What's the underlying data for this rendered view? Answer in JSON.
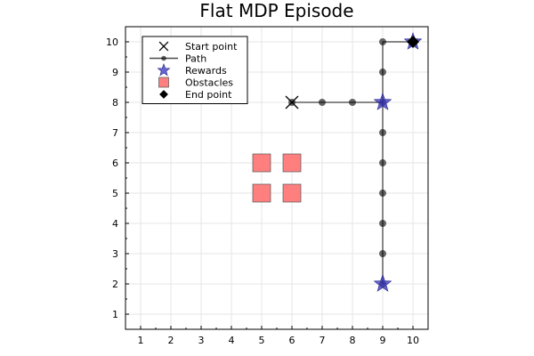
{
  "chart_data": {
    "type": "scatter",
    "title": "Flat MDP Episode",
    "xlabel": "",
    "ylabel": "",
    "xlim": [
      0.5,
      10.5
    ],
    "ylim": [
      0.5,
      10.5
    ],
    "xticks": [
      1,
      2,
      3,
      4,
      5,
      6,
      7,
      8,
      9,
      10
    ],
    "yticks": [
      1,
      2,
      3,
      4,
      5,
      6,
      7,
      8,
      9,
      10
    ],
    "grid": true,
    "legend_position": "top-left",
    "series": [
      {
        "name": "Start point",
        "marker": "x",
        "color": "#000000",
        "points": [
          [
            6,
            8
          ]
        ]
      },
      {
        "name": "Path",
        "marker": "circle-line",
        "color": "#000000",
        "points": [
          [
            6,
            8
          ],
          [
            7,
            8
          ],
          [
            8,
            8
          ],
          [
            9,
            8
          ],
          [
            9,
            9
          ],
          [
            9,
            10
          ],
          [
            10,
            10
          ],
          [
            9,
            7
          ],
          [
            9,
            6
          ],
          [
            9,
            5
          ],
          [
            9,
            4
          ],
          [
            9,
            3
          ],
          [
            9,
            2
          ]
        ],
        "segments": [
          [
            [
              6,
              8
            ],
            [
              9,
              8
            ]
          ],
          [
            [
              9,
              2
            ],
            [
              9,
              10
            ]
          ],
          [
            [
              9,
              10
            ],
            [
              10,
              10
            ]
          ]
        ]
      },
      {
        "name": "Rewards",
        "marker": "star",
        "color": "#3333bb",
        "points": [
          [
            9,
            8
          ],
          [
            9,
            2
          ],
          [
            10,
            10
          ]
        ]
      },
      {
        "name": "Obstacles",
        "marker": "square",
        "color": "#ff7f7f",
        "points": [
          [
            5,
            6
          ],
          [
            6,
            6
          ],
          [
            5,
            5
          ],
          [
            6,
            5
          ]
        ]
      },
      {
        "name": "End point",
        "marker": "diamond",
        "color": "#000000",
        "points": [
          [
            10,
            10
          ]
        ]
      }
    ]
  }
}
